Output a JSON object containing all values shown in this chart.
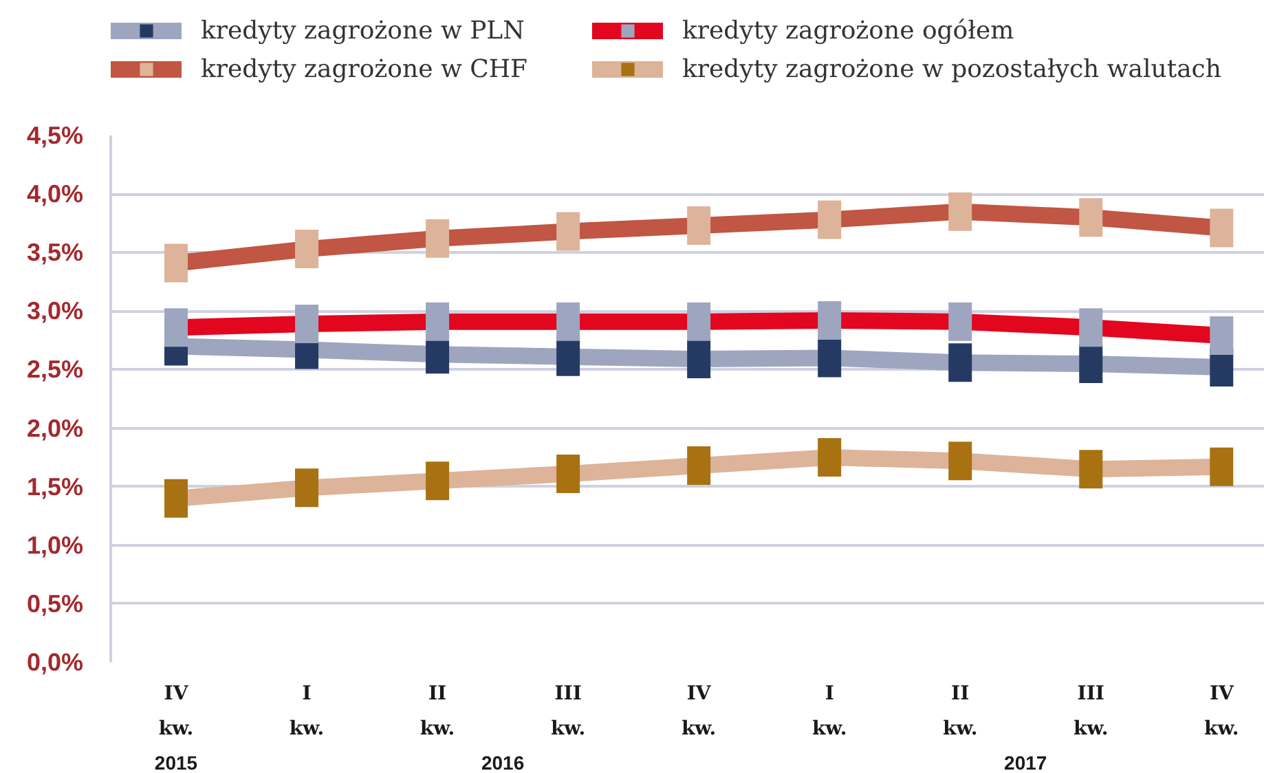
{
  "chart_data": {
    "type": "line",
    "categories": [
      "IV kw.",
      "I kw.",
      "II kw.",
      "III kw.",
      "IV kw.",
      "I kw.",
      "II kw.",
      "III kw.",
      "IV kw."
    ],
    "series": [
      {
        "name": "kredyty zagrożone w PLN",
        "color": "#9ea5bf",
        "colors": [
          "#253a63",
          "#253a63",
          "#253a63",
          "#253a63",
          "#253a63",
          "#253a63",
          "#253a63",
          "#253a63",
          "#253a63"
        ],
        "values": [
          2.7,
          2.67,
          2.63,
          2.61,
          2.59,
          2.6,
          2.56,
          2.55,
          2.52
        ]
      },
      {
        "name": "kredyty zagrożone ogółem",
        "color": "#e2061f",
        "colors": [
          "#9ea5bf",
          "#9ea5bf",
          "#9ea5bf",
          "#9ea5bf",
          "#9ea5bf",
          "#9ea5bf",
          "#9ea5bf",
          "#9ea5bf",
          "#9ea5bf"
        ],
        "values": [
          2.86,
          2.89,
          2.91,
          2.91,
          2.91,
          2.92,
          2.91,
          2.86,
          2.79
        ]
      },
      {
        "name": "kredyty zagrożone w CHF",
        "color": "#c05643",
        "colors": [
          "#ddb39a",
          "#ddb39a",
          "#ddb39a",
          "#ddb39a",
          "#ddb39a",
          "#ddb39a",
          "#ddb39a",
          "#ddb39a",
          "#ddb39a"
        ],
        "values": [
          3.41,
          3.53,
          3.62,
          3.68,
          3.73,
          3.78,
          3.85,
          3.8,
          3.71
        ]
      },
      {
        "name": "kredyty zagrożone w pozostałych walutach",
        "color": "#ddb39a",
        "colors": [
          "#a87112",
          "#a87112",
          "#a87112",
          "#a87112",
          "#a87112",
          "#a87112",
          "#a87112",
          "#a87112",
          "#a87112"
        ],
        "values": [
          1.4,
          1.49,
          1.55,
          1.61,
          1.68,
          1.75,
          1.72,
          1.65,
          1.67
        ]
      }
    ],
    "ylim": [
      0,
      4.5
    ],
    "yticks": [
      {
        "value": 0,
        "label": "0,0%"
      },
      {
        "value": 0.5,
        "label": "0,5%"
      },
      {
        "value": 1,
        "label": "1,0%"
      },
      {
        "value": 1.5,
        "label": "1,5%"
      },
      {
        "value": 2,
        "label": "2,0%"
      },
      {
        "value": 2.5,
        "label": "2,5%"
      },
      {
        "value": 3,
        "label": "3,0%"
      },
      {
        "value": 3.5,
        "label": "3,5%"
      },
      {
        "value": 4,
        "label": "4,0%"
      },
      {
        "value": 4.5,
        "label": "4,5%"
      }
    ],
    "annotations": [
      "2015",
      "2016",
      "2017"
    ],
    "grid": "y",
    "legend": "top",
    "marker": "square",
    "line_style": "solid"
  }
}
